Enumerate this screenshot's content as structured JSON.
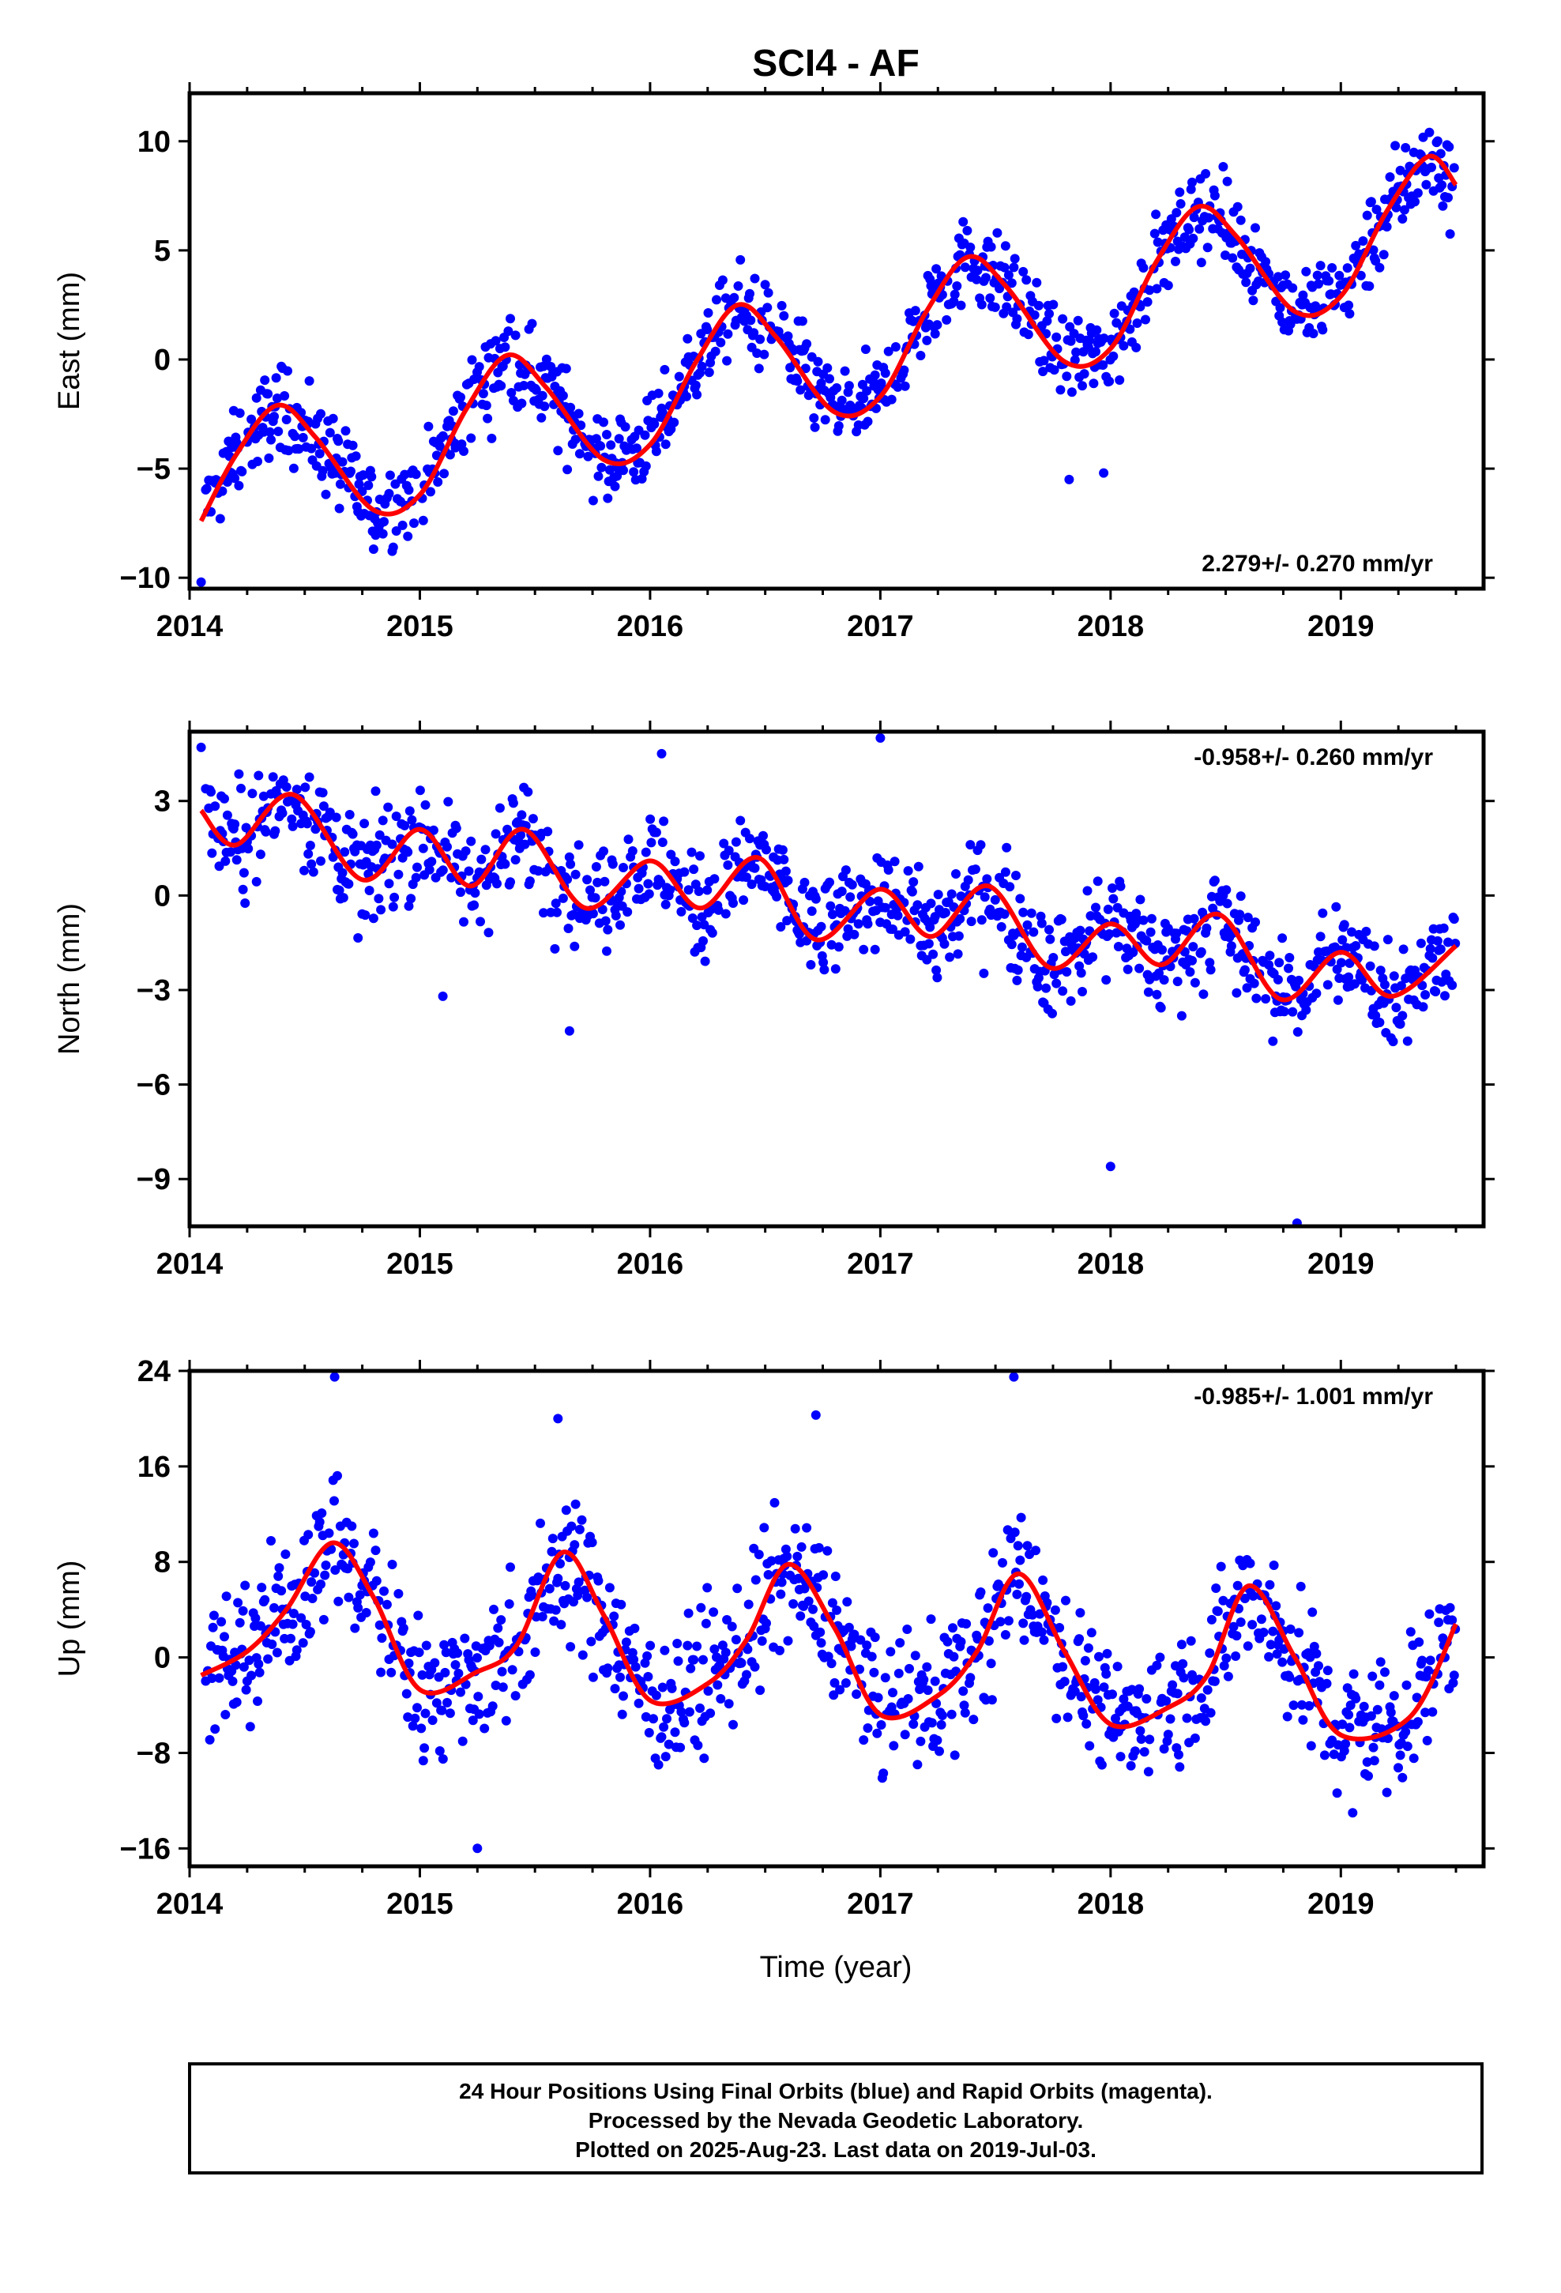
{
  "title": "SCI4 - AF",
  "colors": {
    "points": "#0000ff",
    "model": "#ff0000",
    "axis": "#000000"
  },
  "xlabel": "Time (year)",
  "footer": {
    "line1": "24 Hour Positions Using Final Orbits (blue) and Rapid Orbits (magenta).",
    "line2": "Processed by the Nevada Geodetic Laboratory.",
    "line3": "Plotted on 2025-Aug-23. Last data on 2019-Jul-03."
  },
  "chart_data": [
    {
      "type": "scatter",
      "ylabel": "East (mm)",
      "xlim": [
        2014,
        2019.62
      ],
      "ylim": [
        -10.5,
        12.2
      ],
      "xticks": [
        "2014",
        "2015",
        "2016",
        "2017",
        "2018",
        "2019"
      ],
      "yticks": [
        -10,
        -5,
        0,
        5,
        10
      ],
      "rate_label": "2.279+/- 0.270 mm/yr",
      "rate_position": "bottom-right",
      "points_summary": {
        "x_start": 2014.07,
        "x_end": 2019.5,
        "outliers": [
          [
            2017.82,
            -5.5
          ],
          [
            2017.97,
            -5.2
          ],
          [
            2014.05,
            -10.2
          ]
        ]
      },
      "model": {
        "x": [
          2014.05,
          2014.2,
          2014.38,
          2014.55,
          2014.8,
          2015.0,
          2015.2,
          2015.38,
          2015.55,
          2015.8,
          2016.0,
          2016.2,
          2016.38,
          2016.55,
          2016.8,
          2017.0,
          2017.2,
          2017.38,
          2017.55,
          2017.8,
          2018.0,
          2018.2,
          2018.38,
          2018.55,
          2018.8,
          2019.0,
          2019.2,
          2019.38,
          2019.5
        ],
        "y": [
          -7.4,
          -4.4,
          -2.1,
          -3.6,
          -6.9,
          -6.2,
          -2.3,
          0.2,
          -1.3,
          -4.6,
          -3.9,
          -0.1,
          2.5,
          1.0,
          -2.4,
          -1.7,
          2.2,
          4.7,
          3.3,
          -0.1,
          0.5,
          4.5,
          7.0,
          5.6,
          2.2,
          2.9,
          6.8,
          9.3,
          8.0
        ]
      }
    },
    {
      "type": "scatter",
      "ylabel": "North (mm)",
      "xlim": [
        2014,
        2019.62
      ],
      "ylim": [
        -10.5,
        5.2
      ],
      "xticks": [
        "2014",
        "2015",
        "2016",
        "2017",
        "2018",
        "2019"
      ],
      "yticks": [
        3,
        0,
        -3,
        -6,
        -9
      ],
      "rate_label": "-0.958+/- 0.260 mm/yr",
      "rate_position": "top-right",
      "points_summary": {
        "x_start": 2014.07,
        "x_end": 2019.5,
        "outliers": [
          [
            2014.05,
            4.7
          ],
          [
            2016.05,
            4.5
          ],
          [
            2017.0,
            5.0
          ],
          [
            2018.0,
            -8.6
          ],
          [
            2018.81,
            -10.4
          ],
          [
            2015.65,
            -4.3
          ],
          [
            2015.1,
            -3.2
          ]
        ]
      },
      "model": {
        "x": [
          2014.05,
          2014.2,
          2014.45,
          2014.75,
          2015.0,
          2015.22,
          2015.45,
          2015.72,
          2016.0,
          2016.22,
          2016.47,
          2016.72,
          2017.0,
          2017.22,
          2017.47,
          2017.74,
          2018.0,
          2018.22,
          2018.47,
          2018.74,
          2019.0,
          2019.22,
          2019.5
        ],
        "y": [
          2.7,
          1.6,
          3.2,
          0.5,
          2.1,
          0.3,
          2.1,
          -0.4,
          1.1,
          -0.4,
          1.2,
          -1.4,
          0.2,
          -1.3,
          0.3,
          -2.3,
          -0.9,
          -2.2,
          -0.6,
          -3.3,
          -1.8,
          -3.2,
          -1.6
        ]
      }
    },
    {
      "type": "scatter",
      "ylabel": "Up (mm)",
      "xlim": [
        2014,
        2019.62
      ],
      "ylim": [
        -17.5,
        24
      ],
      "xticks": [
        "2014",
        "2015",
        "2016",
        "2017",
        "2018",
        "2019"
      ],
      "yticks": [
        24,
        16,
        8,
        0,
        -8,
        -16
      ],
      "rate_label": "-0.985+/- 1.001 mm/yr",
      "rate_position": "top-right",
      "points_summary": {
        "x_start": 2014.07,
        "x_end": 2019.5,
        "outliers": [
          [
            2014.63,
            23.5
          ],
          [
            2017.58,
            23.5
          ],
          [
            2016.72,
            20.3
          ],
          [
            2015.6,
            20.0
          ],
          [
            2015.25,
            -16.0
          ]
        ]
      },
      "model": {
        "x": [
          2014.05,
          2014.25,
          2014.42,
          2014.62,
          2014.8,
          2015.0,
          2015.25,
          2015.42,
          2015.62,
          2015.8,
          2016.0,
          2016.25,
          2016.42,
          2016.6,
          2016.8,
          2017.0,
          2017.25,
          2017.42,
          2017.6,
          2017.8,
          2018.0,
          2018.25,
          2018.42,
          2018.6,
          2018.8,
          2019.0,
          2019.3,
          2019.5
        ],
        "y": [
          -1.5,
          0.5,
          4.0,
          9.6,
          5.0,
          -2.7,
          -1.2,
          1.0,
          8.8,
          3.5,
          -3.6,
          -2.2,
          1.5,
          7.8,
          2.5,
          -4.8,
          -3.2,
          0.5,
          7.0,
          0.5,
          -5.6,
          -4.2,
          -1.5,
          6.0,
          0.0,
          -6.5,
          -5.0,
          2.8
        ]
      }
    }
  ]
}
